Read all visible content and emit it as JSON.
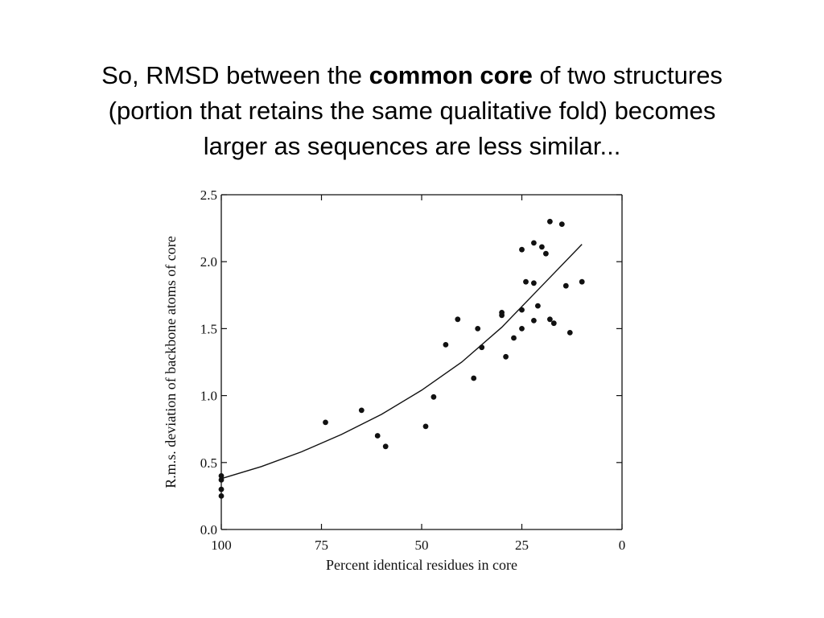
{
  "slide": {
    "title_line1_before": "So, RMSD between the ",
    "title_line1_emph": "common core",
    "title_line1_after": " of two structures",
    "title_line2": "(portion that retains the same qualitative fold) becomes",
    "title_line3": "larger as sequences are less similar..."
  },
  "chart_data": {
    "type": "scatter",
    "title": "",
    "xlabel": "Percent identical residues in core",
    "ylabel": "R.m.s. deviation of backbone atoms of core",
    "xlim": [
      100,
      0
    ],
    "ylim": [
      0,
      2.5
    ],
    "x_ticks": [
      100,
      75,
      50,
      25,
      0
    ],
    "x_tick_labels": [
      "100",
      "75",
      "50",
      "25",
      "0"
    ],
    "y_ticks": [
      0,
      0.5,
      1.0,
      1.5,
      2.0,
      2.5
    ],
    "y_tick_labels": [
      "0.0",
      "0.5",
      "1.0",
      "1.5",
      "2.0",
      "2.5"
    ],
    "grid": false,
    "series": [
      {
        "type": "scatter",
        "points": [
          [
            100,
            0.25
          ],
          [
            100,
            0.3
          ],
          [
            100,
            0.37
          ],
          [
            100,
            0.4
          ],
          [
            74,
            0.8
          ],
          [
            65,
            0.89
          ],
          [
            61,
            0.7
          ],
          [
            59,
            0.62
          ],
          [
            49,
            0.77
          ],
          [
            47,
            0.99
          ],
          [
            44,
            1.38
          ],
          [
            41,
            1.57
          ],
          [
            37,
            1.13
          ],
          [
            36,
            1.5
          ],
          [
            35,
            1.36
          ],
          [
            30,
            1.6
          ],
          [
            30,
            1.62
          ],
          [
            29,
            1.29
          ],
          [
            27,
            1.43
          ],
          [
            25,
            1.5
          ],
          [
            25,
            1.64
          ],
          [
            25,
            2.09
          ],
          [
            24,
            1.85
          ],
          [
            22,
            2.14
          ],
          [
            22,
            1.84
          ],
          [
            22,
            1.56
          ],
          [
            21,
            1.67
          ],
          [
            20,
            2.11
          ],
          [
            19,
            2.06
          ],
          [
            18,
            2.3
          ],
          [
            18,
            1.57
          ],
          [
            17,
            1.54
          ],
          [
            15,
            2.28
          ],
          [
            14,
            1.82
          ],
          [
            13,
            1.47
          ],
          [
            10,
            1.85
          ]
        ]
      },
      {
        "type": "line",
        "points": [
          [
            100,
            0.38
          ],
          [
            90,
            0.47
          ],
          [
            80,
            0.58
          ],
          [
            70,
            0.71
          ],
          [
            60,
            0.86
          ],
          [
            50,
            1.04
          ],
          [
            40,
            1.25
          ],
          [
            30,
            1.51
          ],
          [
            20,
            1.82
          ],
          [
            10,
            2.13
          ]
        ]
      }
    ]
  }
}
